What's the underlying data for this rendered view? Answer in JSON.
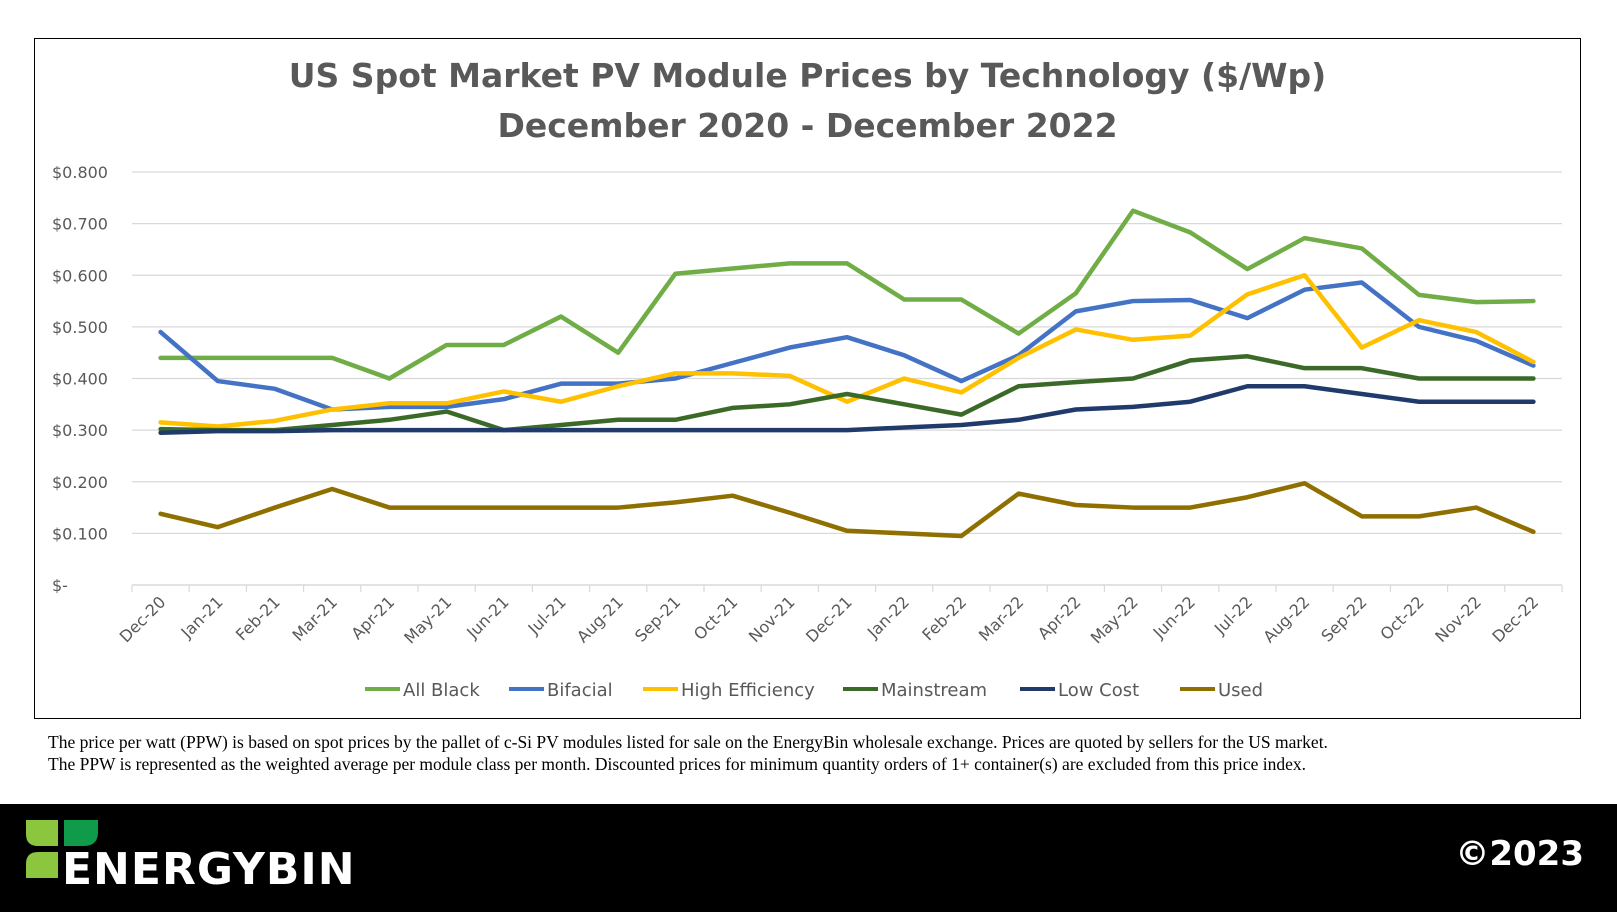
{
  "chart_data": {
    "type": "line",
    "title": "US Spot Market PV Module Prices by Technology ($/Wp)",
    "subtitle": "December 2020 - December 2022",
    "xlabel": "",
    "ylabel": "",
    "ylim": [
      0,
      0.8
    ],
    "yticks": [
      "$-",
      "$0.100",
      "$0.200",
      "$0.300",
      "$0.400",
      "$0.500",
      "$0.600",
      "$0.700",
      "$0.800"
    ],
    "grid": true,
    "legend_position": "bottom",
    "categories": [
      "Dec-20",
      "Jan-21",
      "Feb-21",
      "Mar-21",
      "Apr-21",
      "May-21",
      "Jun-21",
      "Jul-21",
      "Aug-21",
      "Sep-21",
      "Oct-21",
      "Nov-21",
      "Dec-21",
      "Jan-22",
      "Feb-22",
      "Mar-22",
      "Apr-22",
      "May-22",
      "Jun-22",
      "Jul-22",
      "Aug-22",
      "Sep-22",
      "Oct-22",
      "Nov-22",
      "Dec-22"
    ],
    "series": [
      {
        "name": "All Black",
        "color": "#70ad47",
        "values": [
          0.44,
          0.44,
          0.44,
          0.44,
          0.4,
          0.465,
          0.465,
          0.52,
          0.45,
          0.603,
          0.613,
          0.623,
          0.623,
          0.553,
          0.553,
          0.487,
          0.565,
          0.725,
          0.683,
          0.612,
          0.672,
          0.652,
          0.562,
          0.548,
          0.55
        ]
      },
      {
        "name": "Bifacial",
        "color": "#4472c4",
        "values": [
          0.49,
          0.395,
          0.38,
          0.34,
          0.345,
          0.345,
          0.36,
          0.39,
          0.39,
          0.4,
          0.43,
          0.46,
          0.48,
          0.445,
          0.395,
          0.445,
          0.53,
          0.55,
          0.552,
          0.517,
          0.572,
          0.586,
          0.5,
          0.473,
          0.425
        ]
      },
      {
        "name": "High Efficiency",
        "color": "#ffc000",
        "values": [
          0.315,
          0.307,
          0.318,
          0.34,
          0.352,
          0.352,
          0.375,
          0.355,
          0.385,
          0.41,
          0.41,
          0.405,
          0.355,
          0.4,
          0.373,
          0.44,
          0.495,
          0.475,
          0.483,
          0.563,
          0.6,
          0.46,
          0.513,
          0.49,
          0.432
        ]
      },
      {
        "name": "Mainstream",
        "color": "#3b6a28",
        "values": [
          0.302,
          0.3,
          0.3,
          0.31,
          0.32,
          0.336,
          0.3,
          0.31,
          0.32,
          0.32,
          0.343,
          0.35,
          0.37,
          0.35,
          0.33,
          0.385,
          0.393,
          0.4,
          0.435,
          0.443,
          0.42,
          0.42,
          0.4,
          0.4,
          0.4
        ]
      },
      {
        "name": "Low Cost",
        "color": "#203b6b",
        "values": [
          0.295,
          0.298,
          0.298,
          0.3,
          0.3,
          0.3,
          0.3,
          0.3,
          0.3,
          0.3,
          0.3,
          0.3,
          0.3,
          0.305,
          0.31,
          0.32,
          0.34,
          0.345,
          0.355,
          0.385,
          0.385,
          0.37,
          0.355,
          0.355,
          0.355
        ]
      },
      {
        "name": "Used",
        "color": "#8f6f00",
        "values": [
          0.138,
          0.112,
          0.15,
          0.186,
          0.15,
          0.15,
          0.15,
          0.15,
          0.15,
          0.16,
          0.173,
          0.14,
          0.105,
          0.1,
          0.095,
          0.177,
          0.155,
          0.15,
          0.15,
          0.17,
          0.197,
          0.133,
          0.133,
          0.15,
          0.103
        ]
      }
    ]
  },
  "note": {
    "line1": "The price per watt (PPW) is based on spot prices by the pallet of c-Si PV modules listed for sale on the EnergyBin wholesale exchange.  Prices are quoted by sellers for the US market.",
    "line2": "The PPW is represented as the weighted average per module class per month.  Discounted prices for minimum quantity orders of 1+ container(s) are excluded from this price index."
  },
  "footer": {
    "brand": "ENERGYBIN",
    "copyright": "©2023",
    "logo_colors": [
      "#8cc63f",
      "#0f9b4a"
    ]
  }
}
